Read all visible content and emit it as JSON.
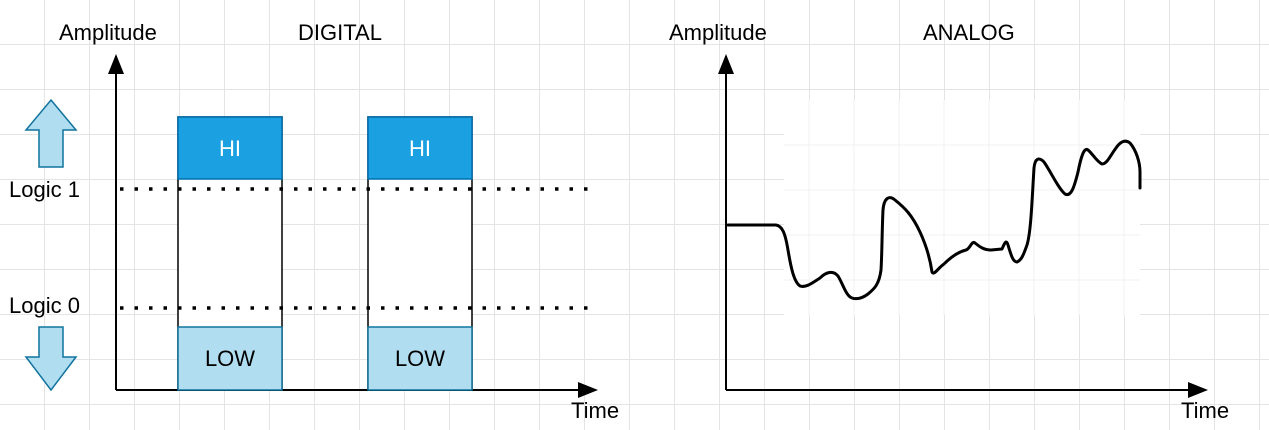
{
  "digital": {
    "title": "DIGITAL",
    "y_axis_label": "Amplitude",
    "x_axis_label": "Time",
    "logic1_label": "Logic 1",
    "logic0_label": "Logic 0",
    "hi_label": "HI",
    "low_label": "LOW",
    "hi_color": "#1ba1e2",
    "low_color": "#b1ddf0",
    "arrow_fill": "#b1ddf0",
    "arrow_stroke": "#10739e"
  },
  "analog": {
    "title": "ANALOG",
    "y_axis_label": "Amplitude",
    "x_axis_label": "Time"
  },
  "icons": {
    "up": "arrow-up-icon",
    "down": "arrow-down-icon"
  }
}
